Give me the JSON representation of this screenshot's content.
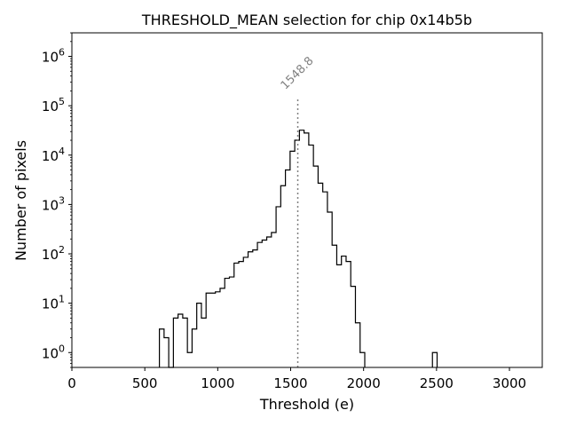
{
  "chart_data": {
    "type": "histogram",
    "title": "THRESHOLD_MEAN selection for chip 0x14b5b",
    "xlabel": "Threshold (e)",
    "ylabel": "Number of pixels",
    "xlim": [
      0,
      3225
    ],
    "ylim": [
      0.5,
      3000000
    ],
    "yscale": "log",
    "xticks": [
      0,
      500,
      1000,
      1500,
      2000,
      2500,
      3000
    ],
    "xtick_labels": [
      "0",
      "500",
      "1000",
      "1500",
      "2000",
      "2500",
      "3000"
    ],
    "yticks": [
      1,
      10,
      100,
      1000,
      10000,
      100000,
      1000000
    ],
    "ytick_labels": [
      {
        "base": "10",
        "exp": "0"
      },
      {
        "base": "10",
        "exp": "1"
      },
      {
        "base": "10",
        "exp": "2"
      },
      {
        "base": "10",
        "exp": "3"
      },
      {
        "base": "10",
        "exp": "4"
      },
      {
        "base": "10",
        "exp": "5"
      },
      {
        "base": "10",
        "exp": "6"
      }
    ],
    "bin_width": 32,
    "bin_edges_start": 600,
    "counts": [
      3,
      2,
      0,
      5,
      6,
      5,
      1,
      3,
      10,
      5,
      16,
      16,
      17,
      20,
      32,
      34,
      65,
      70,
      85,
      110,
      120,
      170,
      190,
      220,
      270,
      900,
      2400,
      5000,
      12000,
      20000,
      32000,
      28000,
      16000,
      6000,
      2700,
      1800,
      700,
      150,
      60,
      90,
      70,
      22,
      4,
      1
    ],
    "extra_bins": [
      {
        "x0": 2472,
        "x1": 2504,
        "count": 1
      }
    ],
    "annotation": {
      "x": 1548.8,
      "text": "1548.8",
      "line_top": 150000
    },
    "grid": false,
    "line_color": "#000000",
    "annotation_color": "#808080"
  }
}
